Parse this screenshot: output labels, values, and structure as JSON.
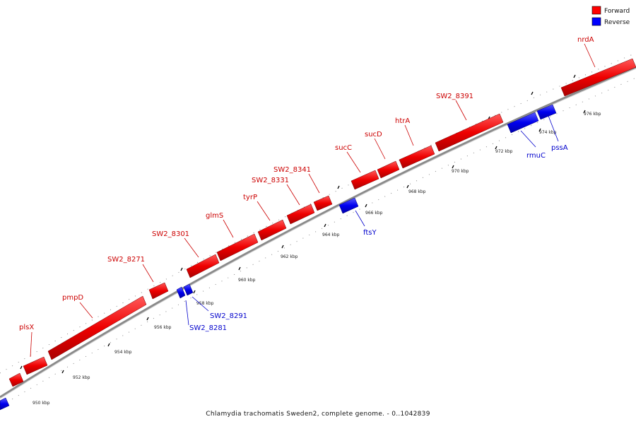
{
  "caption": "Chlamydia trachomatis Sweden2, complete genome. - 0..1042839",
  "legend": [
    {
      "label": "Forward",
      "color": "#ff0000"
    },
    {
      "label": "Reverse",
      "color": "#0000ff"
    }
  ],
  "colors": {
    "forward": "#ff0000",
    "reverse": "#0000ff",
    "backbone": "#999999"
  },
  "ticks": [
    "950 kbp",
    "952 kbp",
    "954 kbp",
    "956 kbp",
    "958 kbp",
    "960 kbp",
    "962 kbp",
    "964 kbp",
    "966 kbp",
    "968 kbp",
    "970 kbp",
    "972 kbp",
    "974 kbp",
    "976 kbp"
  ],
  "genes": [
    {
      "name": "plsX",
      "strand": "forward"
    },
    {
      "name": "pmpD",
      "strand": "forward"
    },
    {
      "name": "SW2_8271",
      "strand": "forward"
    },
    {
      "name": "SW2_8281",
      "strand": "reverse"
    },
    {
      "name": "SW2_8291",
      "strand": "reverse"
    },
    {
      "name": "SW2_8301",
      "strand": "forward"
    },
    {
      "name": "glmS",
      "strand": "forward"
    },
    {
      "name": "tyrP",
      "strand": "forward"
    },
    {
      "name": "SW2_8331",
      "strand": "forward"
    },
    {
      "name": "SW2_8341",
      "strand": "forward"
    },
    {
      "name": "ftsY",
      "strand": "reverse"
    },
    {
      "name": "sucC",
      "strand": "forward"
    },
    {
      "name": "sucD",
      "strand": "forward"
    },
    {
      "name": "htrA",
      "strand": "forward"
    },
    {
      "name": "SW2_8391",
      "strand": "forward"
    },
    {
      "name": "rmuC",
      "strand": "reverse"
    },
    {
      "name": "pssA",
      "strand": "reverse"
    },
    {
      "name": "nrdA",
      "strand": "forward"
    }
  ]
}
